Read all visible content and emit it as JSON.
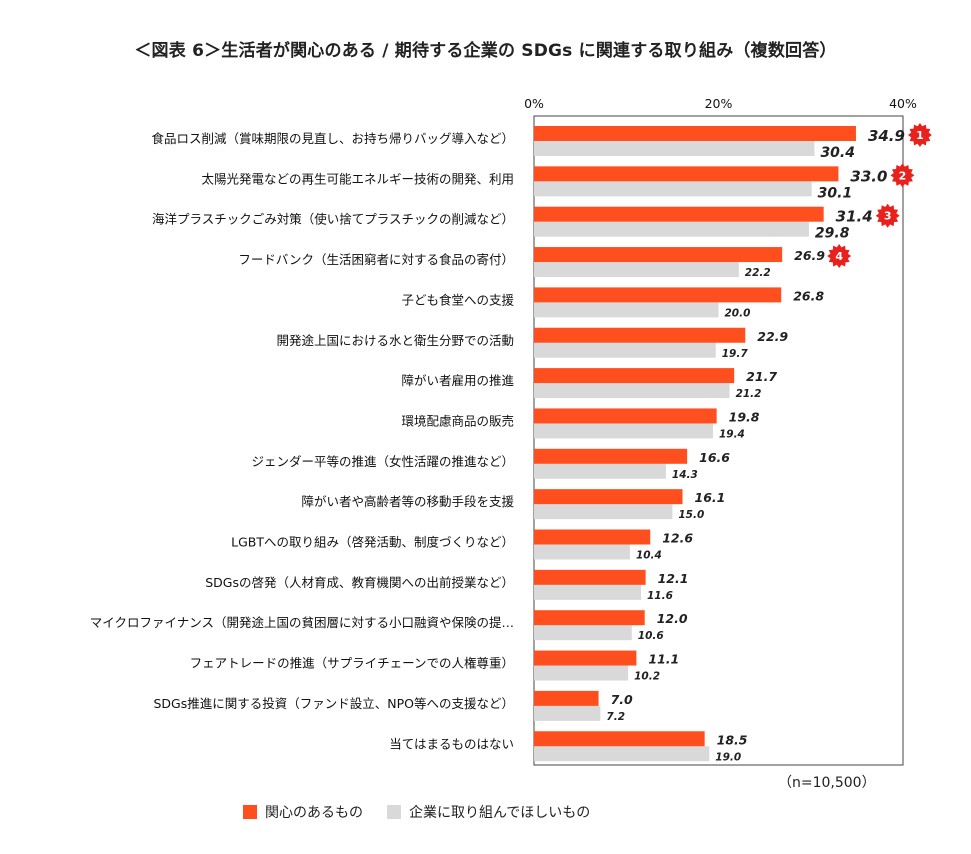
{
  "chart_data": {
    "type": "bar",
    "orientation": "horizontal",
    "title": "＜図表 6＞生活者が関心のある / 期待する企業の SDGs に関連する取り組み（複数回答）",
    "xlim": [
      0,
      40
    ],
    "ticks": [
      "0%",
      "20%",
      "40%"
    ],
    "tick_values": [
      0,
      20,
      40
    ],
    "categories": [
      "食品ロス削減（賞味期限の見直し、お持ち帰りバッグ導入など）",
      "太陽光発電などの再生可能エネルギー技術の開発、利用",
      "海洋プラスチックごみ対策（使い捨てプラスチックの削減など）",
      "フードバンク（生活困窮者に対する食品の寄付）",
      "子ども食堂への支援",
      "開発途上国における水と衛生分野での活動",
      "障がい者雇用の推進",
      "環境配慮商品の販売",
      "ジェンダー平等の推進（女性活躍の推進など）",
      "障がい者や高齢者等の移動手段を支援",
      "LGBTへの取り組み（啓発活動、制度づくりなど）",
      "SDGsの啓発（人材育成、教育機関への出前授業など）",
      "マイクロファイナンス（開発途上国の貧困層に対する小口融資や保険の提…",
      "フェアトレードの推進（サプライチェーンでの人権尊重）",
      "SDGs推進に関する投資（ファンド設立、NPO等への支援など）",
      "当てはまるものはない"
    ],
    "series": [
      {
        "name": "関心のあるもの",
        "color": "#ff4f1f",
        "values": [
          34.9,
          33.0,
          31.4,
          26.9,
          26.8,
          22.9,
          21.7,
          19.8,
          16.6,
          16.1,
          12.6,
          12.1,
          12.0,
          11.1,
          7.0,
          18.5
        ],
        "labels": [
          "34.9",
          "33.0",
          "31.4",
          "26.9",
          "26.8",
          "22.9",
          "21.7",
          "19.8",
          "16.6",
          "16.1",
          "12.6",
          "12.1",
          "12.0",
          "11.1",
          "7.0",
          "18.5"
        ]
      },
      {
        "name": "企業に取り組んでほしいもの",
        "color": "#d9d9d9",
        "values": [
          30.4,
          30.1,
          29.8,
          22.2,
          20.0,
          19.7,
          21.2,
          19.4,
          14.3,
          15.0,
          10.4,
          11.6,
          10.6,
          10.2,
          7.2,
          19.0
        ],
        "labels": [
          "30.4",
          "30.1",
          "29.8",
          "22.2",
          "20.0",
          "19.7",
          "21.2",
          "19.4",
          "14.3",
          "15.0",
          "10.4",
          "11.6",
          "10.6",
          "10.2",
          "7.2",
          "19.0"
        ]
      }
    ],
    "ranks": [
      {
        "category_index": 0,
        "label": "1"
      },
      {
        "category_index": 1,
        "label": "2"
      },
      {
        "category_index": 2,
        "label": "3"
      },
      {
        "category_index": 3,
        "label": "4"
      }
    ],
    "rank_color": "#e8211d",
    "note": "（n=10,500）",
    "legend_position": "bottom"
  }
}
